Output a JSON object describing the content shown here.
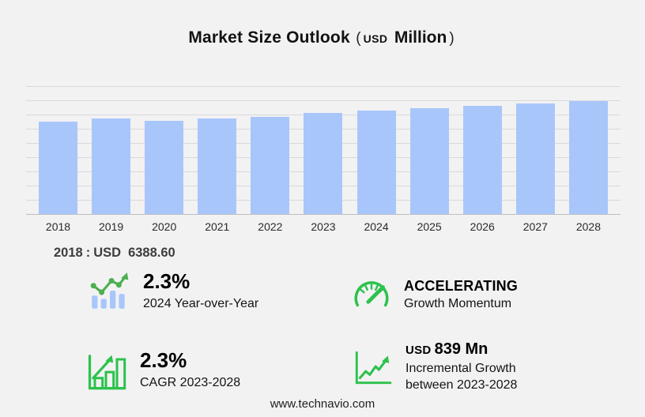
{
  "colors": {
    "bar": "#a9c6fb",
    "green": "#2cc24b",
    "line_green": "#4caf50",
    "background": "#f2f2f3"
  },
  "title": {
    "main": "Market Size Outlook",
    "paren_open": "(",
    "currency": "USD",
    "unit": "Million",
    "paren_close": ")"
  },
  "chart_data": {
    "type": "bar",
    "title": "Market Size Outlook (USD Million)",
    "categories": [
      "2018",
      "2019",
      "2020",
      "2021",
      "2022",
      "2023",
      "2024",
      "2025",
      "2026",
      "2027",
      "2028"
    ],
    "values": [
      6388.6,
      6583.7,
      6453.6,
      6616.2,
      6746.3,
      6974.0,
      7134.4,
      7298.5,
      7466.4,
      7638.1,
      7813.8
    ],
    "ylim": [
      0,
      8850
    ],
    "grid": true,
    "legend": "none",
    "xlabel": "",
    "ylabel": "",
    "annotation": {
      "year": "2018",
      "sep": ":",
      "currency": "USD",
      "amount": "6388.60"
    }
  },
  "stats": [
    {
      "icon": "bar-trend-up-icon",
      "value": "2.3%",
      "label": "2024 Year-over-Year"
    },
    {
      "icon": "gauge-icon",
      "value": "ACCELERATING",
      "label": "Growth Momentum"
    },
    {
      "icon": "growth-chart-icon",
      "value": "2.3%",
      "label": "CAGR 2023-2028"
    },
    {
      "icon": "line-growth-icon",
      "value_currency": "USD",
      "value": "839 Mn",
      "label_line1": "Incremental Growth",
      "label_line2": "between 2023-2028"
    }
  ],
  "footer": {
    "url": "www.technavio.com"
  }
}
